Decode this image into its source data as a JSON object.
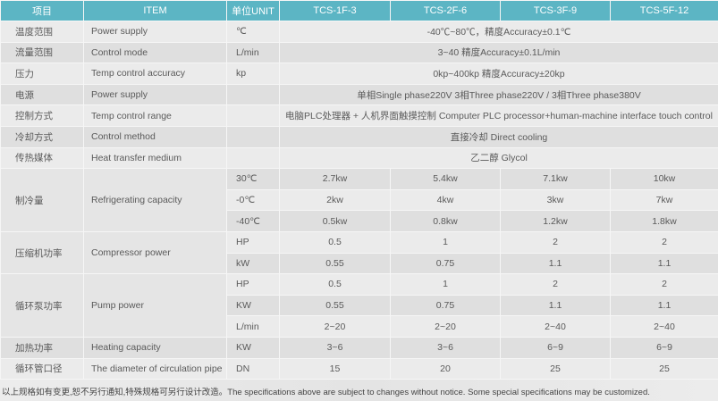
{
  "header": [
    "项目",
    "ITEM",
    "单位UNIT",
    "TCS-1F-3",
    "TCS-2F-6",
    "TCS-3F-9",
    "TCS-5F-12"
  ],
  "groups": [
    {
      "cn": "温度范围",
      "en": "Power supply",
      "rows": [
        {
          "unit": "℃",
          "merged": "-40℃~80℃，精度Accuracy±0.1℃"
        }
      ]
    },
    {
      "cn": "流量范围",
      "en": "Control mode",
      "rows": [
        {
          "unit": "L/min",
          "merged": "3~40 精度Accuracy±0.1L/min"
        }
      ]
    },
    {
      "cn": "压力",
      "en": "Temp control accuracy",
      "rows": [
        {
          "unit": "kp",
          "merged": "0kp~400kp  精度Accuracy±20kp"
        }
      ]
    },
    {
      "cn": "电源",
      "en": "Power supply",
      "rows": [
        {
          "unit": "",
          "merged": "单相Single phase220V   3相Three phase220V  / 3相Three phase380V"
        }
      ]
    },
    {
      "cn": "控制方式",
      "en": "Temp control range",
      "rows": [
        {
          "unit": "",
          "merged": "电脑PLC处理器 + 人机界面触摸控制 Computer PLC processor+human-machine interface touch control"
        }
      ]
    },
    {
      "cn": "冷却方式",
      "en": "Control method",
      "rows": [
        {
          "unit": "",
          "merged": "直接冷却 Direct cooling"
        }
      ]
    },
    {
      "cn": "传热媒体",
      "en": "Heat transfer medium",
      "rows": [
        {
          "unit": "",
          "merged": "乙二醇 Glycol"
        }
      ]
    },
    {
      "cn": "制冷量",
      "en": "Refrigerating capacity",
      "rows": [
        {
          "unit": "30℃",
          "values": [
            "2.7kw",
            "5.4kw",
            "7.1kw",
            "10kw"
          ]
        },
        {
          "unit": "-0℃",
          "values": [
            "2kw",
            "4kw",
            "3kw",
            "7kw"
          ]
        },
        {
          "unit": "-40℃",
          "values": [
            "0.5kw",
            "0.8kw",
            "1.2kw",
            "1.8kw"
          ]
        }
      ]
    },
    {
      "cn": "压缩机功率",
      "en": "Compressor power",
      "rows": [
        {
          "unit": "HP",
          "values": [
            "0.5",
            "1",
            "2",
            "2"
          ]
        },
        {
          "unit": "kW",
          "values": [
            "0.55",
            "0.75",
            "1.1",
            "1.1"
          ]
        }
      ]
    },
    {
      "cn": "循环泵功率",
      "en": "Pump power",
      "rows": [
        {
          "unit": "HP",
          "values": [
            "0.5",
            "1",
            "2",
            "2"
          ]
        },
        {
          "unit": "KW",
          "values": [
            "0.55",
            "0.75",
            "1.1",
            "1.1"
          ]
        },
        {
          "unit": "L/min",
          "values": [
            "2~20",
            "2~20",
            "2~40",
            "2~40"
          ]
        }
      ]
    },
    {
      "cn": "加热功率",
      "en": "Heating capacity",
      "rows": [
        {
          "unit": "KW",
          "values": [
            "3~6",
            "3~6",
            "6~9",
            "6~9"
          ]
        }
      ]
    },
    {
      "cn": "循环管口径",
      "en": "The diameter of circulation pipe",
      "rows": [
        {
          "unit": "DN",
          "values": [
            "15",
            "20",
            "25",
            "25"
          ]
        }
      ]
    }
  ],
  "footnote": "以上规格如有变更,恕不另行通知,特殊规格可另行设计改造。The specifications above are subject to changes without notice. Some special specifications may be customized.",
  "colors": {
    "header": "#5cb5c4",
    "row_light": "#ebebeb",
    "row_dark": "#dedede"
  }
}
